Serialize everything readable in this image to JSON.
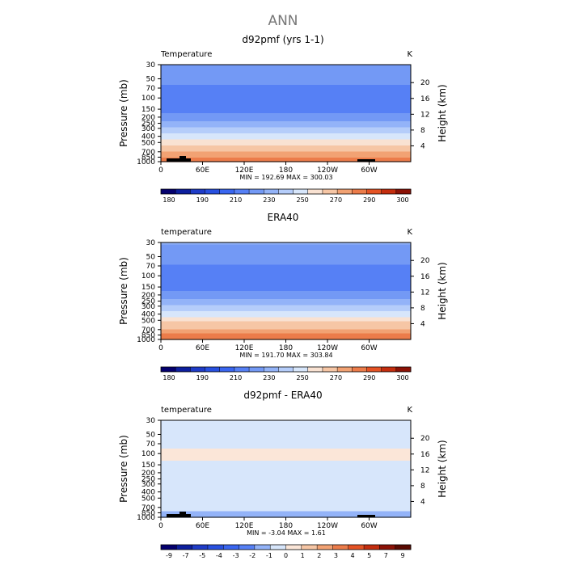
{
  "figure": {
    "title": "ANN",
    "y_left_label": "Pressure (mb)",
    "y_right_label": "Height (km)",
    "pressure_ticks": [
      "30",
      "50",
      "70",
      "100",
      "150",
      "200",
      "250",
      "300",
      "400",
      "500",
      "700",
      "850",
      "1000"
    ],
    "height_ticks": [
      "20",
      "16",
      "12",
      "8",
      "4"
    ],
    "lon_ticks": [
      "0",
      "60E",
      "120E",
      "180",
      "120W",
      "60W"
    ]
  },
  "chart_data": [
    {
      "type": "heatmap",
      "title": "d92pmf (yrs 1-1)",
      "field_label": "Temperature",
      "units": "K",
      "stats": "MIN = 192.69   MAX = 300.03",
      "min": 192.69,
      "max": 300.03,
      "colorbar_labels": [
        "180",
        "190",
        "210",
        "230",
        "250",
        "270",
        "290",
        "300"
      ],
      "levels": [
        175,
        180,
        185,
        190,
        200,
        210,
        220,
        230,
        240,
        250,
        260,
        270,
        280,
        290,
        295,
        300
      ],
      "colors": [
        "#04006e",
        "#0d1f9e",
        "#1f3cc8",
        "#2850e0",
        "#3a66f0",
        "#5680f5",
        "#7399f5",
        "#93b3f8",
        "#b5cdfa",
        "#d7e6fb",
        "#f9e2d2",
        "#f6c6a5",
        "#f2a273",
        "#ec7c4a",
        "#e55324",
        "#c42d0e",
        "#8c1206"
      ],
      "profile": [
        {
          "p": 30,
          "t": 220
        },
        {
          "p": 50,
          "t": 214
        },
        {
          "p": 70,
          "t": 208
        },
        {
          "p": 100,
          "t": 201
        },
        {
          "p": 150,
          "t": 205
        },
        {
          "p": 200,
          "t": 213
        },
        {
          "p": 250,
          "t": 223
        },
        {
          "p": 300,
          "t": 231
        },
        {
          "p": 400,
          "t": 245
        },
        {
          "p": 500,
          "t": 256
        },
        {
          "p": 700,
          "t": 271
        },
        {
          "p": 850,
          "t": 281
        },
        {
          "p": 1000,
          "t": 289
        }
      ],
      "topography": true
    },
    {
      "type": "heatmap",
      "title": "ERA40",
      "field_label": "temperature",
      "units": "K",
      "stats": "MIN = 191.70   MAX = 303.84",
      "min": 191.7,
      "max": 303.84,
      "colorbar_labels": [
        "180",
        "190",
        "210",
        "230",
        "250",
        "270",
        "290",
        "300"
      ],
      "levels": [
        175,
        180,
        185,
        190,
        200,
        210,
        220,
        230,
        240,
        250,
        260,
        270,
        280,
        290,
        295,
        300
      ],
      "colors": [
        "#04006e",
        "#0d1f9e",
        "#1f3cc8",
        "#2850e0",
        "#3a66f0",
        "#5680f5",
        "#7399f5",
        "#93b3f8",
        "#b5cdfa",
        "#d7e6fb",
        "#f9e2d2",
        "#f6c6a5",
        "#f2a273",
        "#ec7c4a",
        "#e55324",
        "#c42d0e",
        "#8c1206"
      ],
      "profile": [
        {
          "p": 30,
          "t": 221
        },
        {
          "p": 50,
          "t": 215
        },
        {
          "p": 70,
          "t": 209
        },
        {
          "p": 100,
          "t": 203
        },
        {
          "p": 150,
          "t": 206
        },
        {
          "p": 200,
          "t": 214
        },
        {
          "p": 250,
          "t": 224
        },
        {
          "p": 300,
          "t": 232
        },
        {
          "p": 400,
          "t": 246
        },
        {
          "p": 500,
          "t": 257
        },
        {
          "p": 700,
          "t": 272
        },
        {
          "p": 850,
          "t": 282
        },
        {
          "p": 1000,
          "t": 290
        }
      ],
      "topography": false
    },
    {
      "type": "heatmap",
      "title": "d92pmf - ERA40",
      "field_label": "temperature",
      "units": "K",
      "stats": "MIN =   -3.04   MAX =   1.61",
      "min": -3.04,
      "max": 1.61,
      "colorbar_labels": [
        "-9",
        "-7",
        "-5",
        "-4",
        "-3",
        "-2",
        "-1",
        "0",
        "1",
        "2",
        "3",
        "4",
        "5",
        "7",
        "9"
      ],
      "levels": [
        -9,
        -7,
        -5,
        -4,
        -3,
        -2,
        -1,
        0,
        1,
        2,
        3,
        4,
        5,
        7,
        9
      ],
      "colors": [
        "#04006e",
        "#0d1f9e",
        "#1f3cc8",
        "#2850e0",
        "#3a66f0",
        "#5680f5",
        "#93b3f8",
        "#d7e6fb",
        "#fbe6d8",
        "#f6c6a5",
        "#f2a273",
        "#ec7c4a",
        "#e55324",
        "#c42d0e",
        "#8c1206",
        "#5a0a02"
      ],
      "profile": [
        {
          "p": 30,
          "t": -0.5
        },
        {
          "p": 50,
          "t": -0.5
        },
        {
          "p": 70,
          "t": -0.4
        },
        {
          "p": 100,
          "t": 0.4
        },
        {
          "p": 150,
          "t": -0.3
        },
        {
          "p": 200,
          "t": -0.6
        },
        {
          "p": 250,
          "t": -0.5
        },
        {
          "p": 300,
          "t": -0.5
        },
        {
          "p": 400,
          "t": -0.6
        },
        {
          "p": 500,
          "t": -0.5
        },
        {
          "p": 700,
          "t": -0.5
        },
        {
          "p": 850,
          "t": -1.2
        },
        {
          "p": 1000,
          "t": -1.3
        }
      ],
      "topography": true
    }
  ]
}
